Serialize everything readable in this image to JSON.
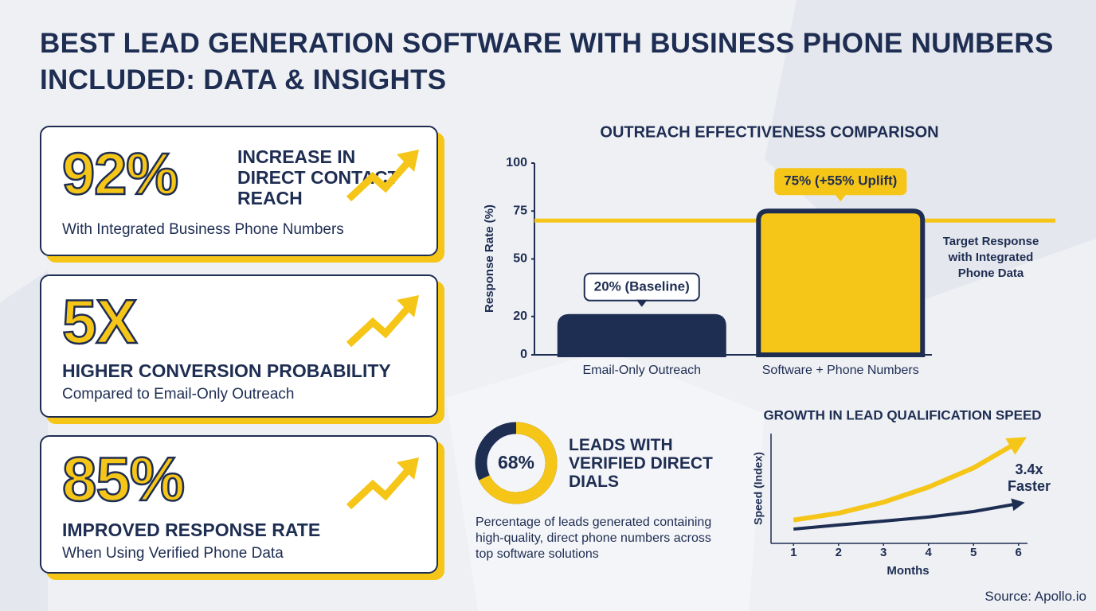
{
  "title": "BEST LEAD GENERATION SOFTWARE WITH BUSINESS PHONE NUMBERS INCLUDED: DATA & INSIGHTS",
  "cards": [
    {
      "stat": "92%",
      "heading": "INCREASE IN DIRECT CONTACT REACH",
      "text": "With Integrated Business Phone Numbers"
    },
    {
      "stat": "5X",
      "heading": "HIGHER CONVERSION PROBABILITY",
      "text": "Compared to Email-Only Outreach"
    },
    {
      "stat": "85%",
      "heading": "IMPROVED RESPONSE RATE",
      "text": "When Using Verified Phone Data"
    }
  ],
  "chart_data": [
    {
      "type": "bar",
      "title": "OUTREACH EFFECTIVENESS COMPARISON",
      "y_label": "Response Rate (%)",
      "categories": [
        "Email-Only Outreach",
        "Software + Phone Numbers"
      ],
      "values": [
        20,
        75
      ],
      "value_labels": [
        "20% (Baseline)",
        "75% (+55% Uplift)"
      ],
      "colors": [
        "#1e2d52",
        "#f5c518"
      ],
      "ylim": [
        0,
        100
      ],
      "yticks": [
        0,
        20,
        50,
        75,
        100
      ],
      "target": {
        "value": 70,
        "label": "Target Response with Integrated Phone Data",
        "color": "#f5c518"
      }
    },
    {
      "type": "pie",
      "title": "LEADS WITH VERIFIED DIRECT DIALS",
      "values": [
        68
      ],
      "value_labels": [
        "68%"
      ],
      "colors": [
        "#f5c518"
      ],
      "track_color": "#1e2d52",
      "description": "Percentage of leads generated containing high-quality, direct phone numbers across top software solutions"
    },
    {
      "type": "line",
      "title": "GROWTH IN LEAD QUALIFICATION SPEED",
      "x_label": "Months",
      "y_label": "Speed (Index)",
      "x": [
        1,
        2,
        3,
        4,
        5,
        6
      ],
      "xlim": [
        0.5,
        6.2
      ],
      "xticks": [
        1,
        2,
        3,
        4,
        5,
        6
      ],
      "ylim": [
        0,
        4
      ],
      "series": [
        {
          "color": "#f5c518",
          "values": [
            0.85,
            1.1,
            1.5,
            2.05,
            2.75,
            3.7
          ]
        },
        {
          "color": "#1e2d52",
          "values": [
            0.52,
            0.67,
            0.81,
            0.96,
            1.16,
            1.45
          ]
        }
      ],
      "annotation": "3.4x Faster"
    }
  ],
  "source": "Source: Apollo.io"
}
